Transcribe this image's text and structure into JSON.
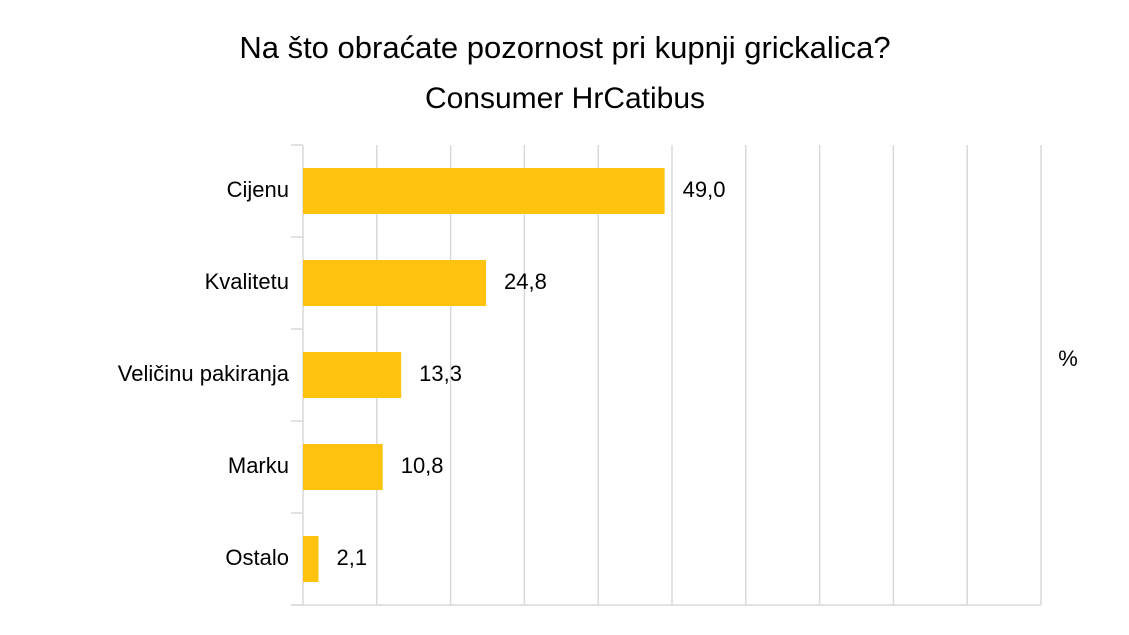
{
  "chart_data": {
    "type": "hbar",
    "title": "Na što obraćate pozornost pri kupnji grickalica?",
    "subtitle": "Consumer HrCatibus",
    "categories": [
      "Cijenu",
      "Kvalitetu",
      "Veličinu pakiranja",
      "Marku",
      "Ostalo"
    ],
    "values": [
      49.0,
      24.8,
      13.3,
      10.8,
      2.1
    ],
    "value_labels": [
      "49,0",
      "24,8",
      "13,3",
      "10,8",
      "2,1"
    ],
    "color": "#FFC20E",
    "unit_label": "%",
    "xlim": [
      0,
      100
    ],
    "xticks": [
      0,
      10,
      20,
      30,
      40,
      50,
      60,
      70,
      80,
      90,
      100
    ],
    "grid": true
  }
}
